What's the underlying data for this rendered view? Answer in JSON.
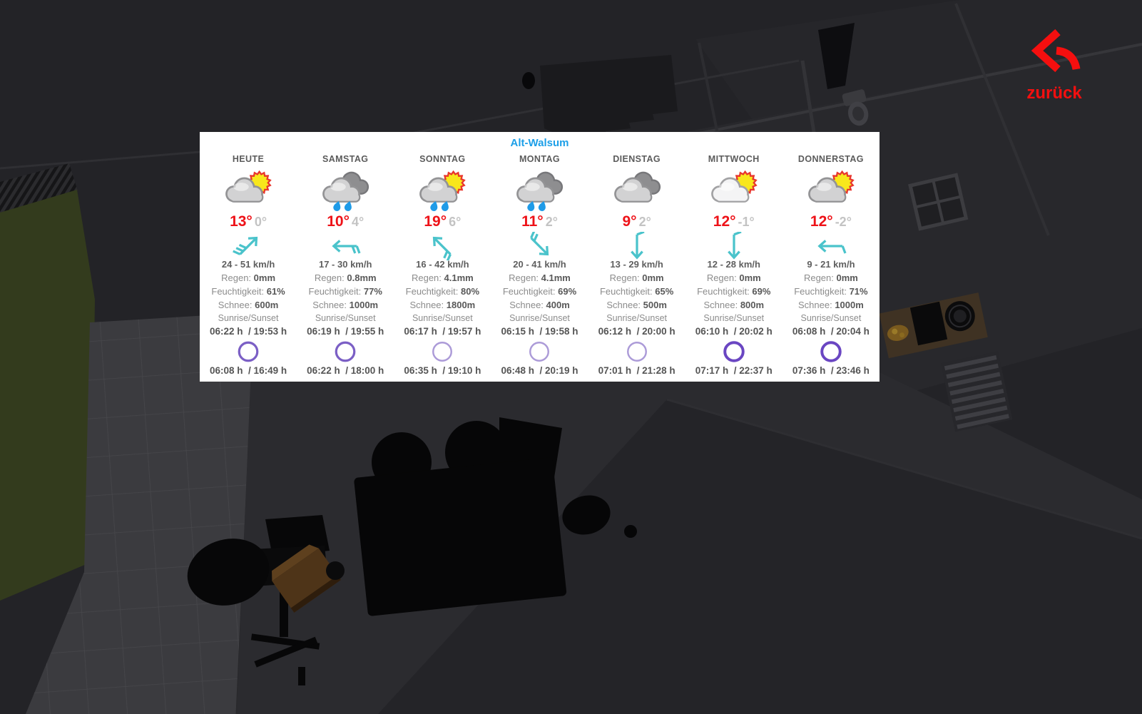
{
  "location": "Alt-Walsum",
  "back_button": {
    "label": "zurück"
  },
  "labels": {
    "rain": "Regen:",
    "humidity": "Feuchtigkeit:",
    "snow": "Schnee:",
    "sun_times": "Sunrise/Sunset"
  },
  "colors": {
    "panel_bg": "#ffffff",
    "location_blue": "#1C9FE8",
    "temp_high_red": "#EE1218",
    "temp_low_gray": "#C3C3C3",
    "wind_teal": "#4AC3CB",
    "rain_blue": "#1F9BE8",
    "sun_yellow": "#F8E71C",
    "sun_outline_red": "#E8362D",
    "back_red": "#F50F0F",
    "moon_light": "#AC9BD8",
    "moon_medium": "#7B5FC5",
    "moon_dark": "#6A46C2"
  },
  "days": [
    {
      "name": "HEUTE",
      "icon": "cloud-sun",
      "temp_high": "13°",
      "temp_low": "0°",
      "wind": {
        "speed": "24 - 51 km/h",
        "rotation_deg": -45,
        "barbs": 3
      },
      "rain": "0mm",
      "humidity": "61%",
      "snow": "600m",
      "sunrise_sunset": "06:22 h  / 19:53 h",
      "moonrise_moonset": "06:08 h  / 16:49 h",
      "moon": {
        "tone": "medium",
        "crescent": false
      }
    },
    {
      "name": "SAMSTAG",
      "icon": "clouds-rain",
      "temp_high": "10°",
      "temp_low": "4°",
      "wind": {
        "speed": "17 - 30 km/h",
        "rotation_deg": 180,
        "barbs": 2
      },
      "rain": "0.8mm",
      "humidity": "77%",
      "snow": "1000m",
      "sunrise_sunset": "06:19 h  / 19:55 h",
      "moonrise_moonset": "06:22 h  / 18:00 h",
      "moon": {
        "tone": "medium",
        "crescent": false
      }
    },
    {
      "name": "SONNTAG",
      "icon": "cloud-sun-rain",
      "temp_high": "19°",
      "temp_low": "6°",
      "wind": {
        "speed": "16 - 42 km/h",
        "rotation_deg": -135,
        "barbs": 2
      },
      "rain": "4.1mm",
      "humidity": "80%",
      "snow": "1800m",
      "sunrise_sunset": "06:17 h  / 19:57 h",
      "moonrise_moonset": "06:35 h  / 19:10 h",
      "moon": {
        "tone": "light",
        "crescent": false
      }
    },
    {
      "name": "MONTAG",
      "icon": "clouds-rain",
      "temp_high": "11°",
      "temp_low": "2°",
      "wind": {
        "speed": "20 - 41 km/h",
        "rotation_deg": 45,
        "barbs": 2
      },
      "rain": "4.1mm",
      "humidity": "69%",
      "snow": "400m",
      "sunrise_sunset": "06:15 h  / 19:58 h",
      "moonrise_moonset": "06:48 h  / 20:19 h",
      "moon": {
        "tone": "light",
        "crescent": false
      }
    },
    {
      "name": "DIENSTAG",
      "icon": "clouds",
      "temp_high": "9°",
      "temp_low": "2°",
      "wind": {
        "speed": "13 - 29 km/h",
        "rotation_deg": 90,
        "barbs": 1
      },
      "rain": "0mm",
      "humidity": "65%",
      "snow": "500m",
      "sunrise_sunset": "06:12 h  / 20:00 h",
      "moonrise_moonset": "07:01 h  / 21:28 h",
      "moon": {
        "tone": "light",
        "crescent": false
      }
    },
    {
      "name": "MITTWOCH",
      "icon": "cloud-sun-white",
      "temp_high": "12°",
      "temp_low": "-1°",
      "wind": {
        "speed": "12 - 28 km/h",
        "rotation_deg": 90,
        "barbs": 1
      },
      "rain": "0mm",
      "humidity": "69%",
      "snow": "800m",
      "sunrise_sunset": "06:10 h  / 20:02 h",
      "moonrise_moonset": "07:17 h  / 22:37 h",
      "moon": {
        "tone": "dark",
        "crescent": false
      }
    },
    {
      "name": "DONNERSTAG",
      "icon": "cloud-sun",
      "temp_high": "12°",
      "temp_low": "-2°",
      "wind": {
        "speed": "9 - 21 km/h",
        "rotation_deg": 180,
        "barbs": 1
      },
      "rain": "0mm",
      "humidity": "71%",
      "snow": "1000m",
      "sunrise_sunset": "06:08 h  / 20:04 h",
      "moonrise_moonset": "07:36 h  / 23:46 h",
      "moon": {
        "tone": "dark",
        "crescent": true
      }
    }
  ]
}
